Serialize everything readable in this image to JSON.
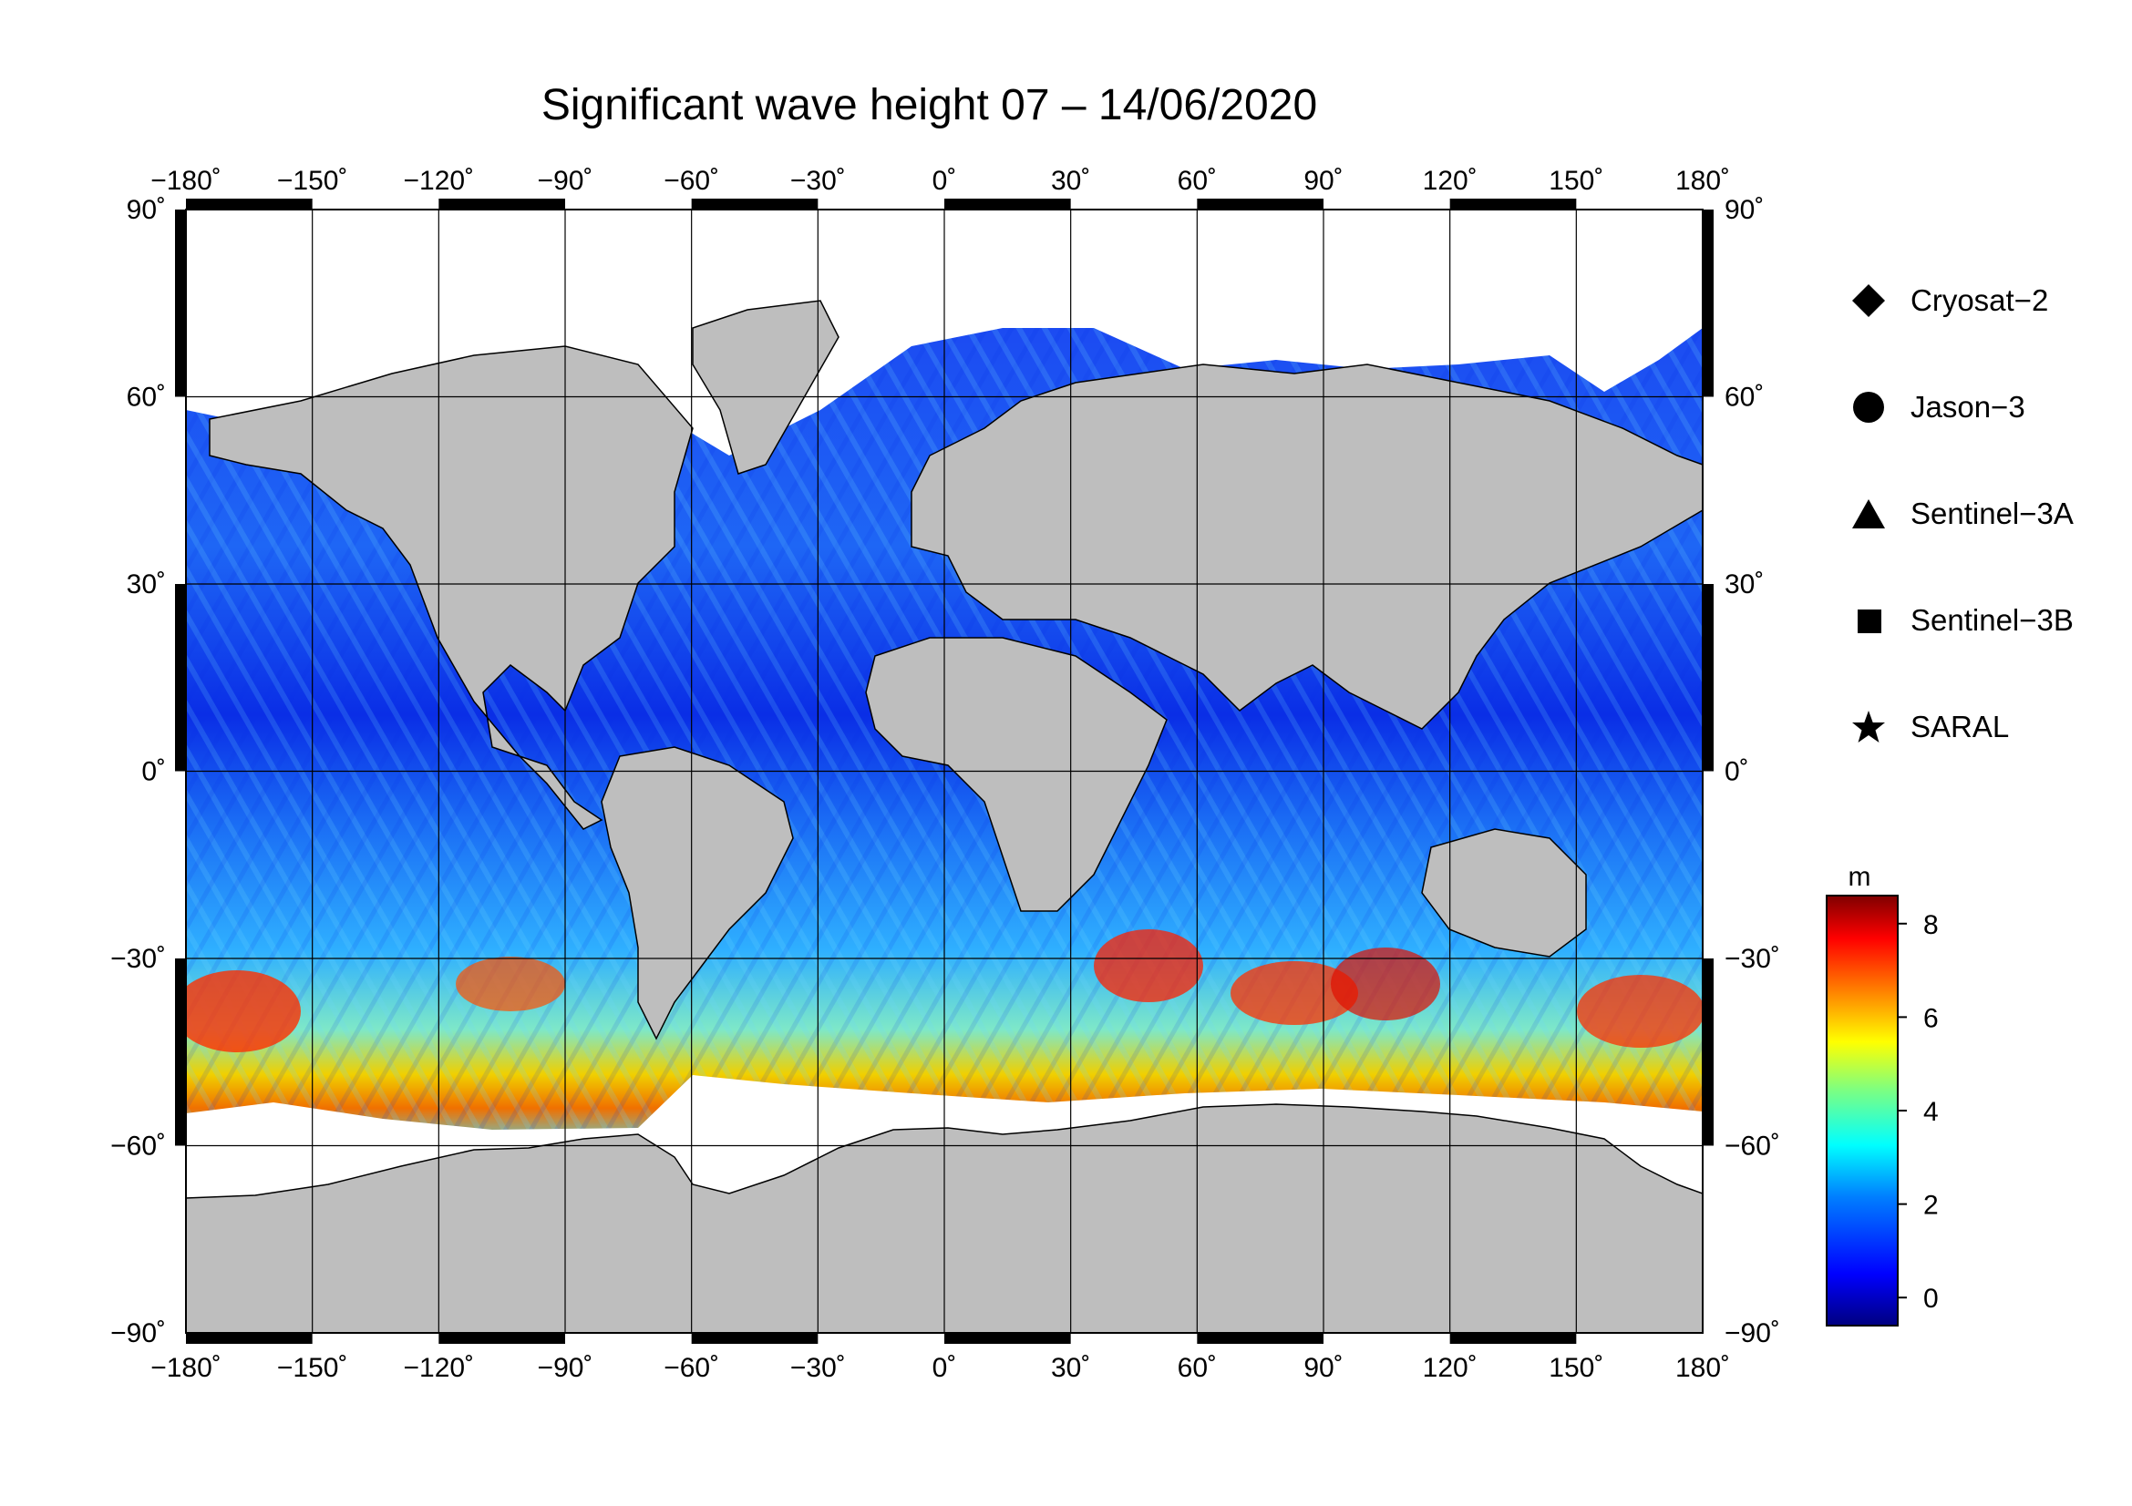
{
  "title": "Significant wave height 07 – 14/06/2020",
  "axes": {
    "lon_ticks": [
      "−180˚",
      "−150˚",
      "−120˚",
      "−90˚",
      "−60˚",
      "−30˚",
      "0˚",
      "30˚",
      "60˚",
      "90˚",
      "120˚",
      "150˚",
      "180˚"
    ],
    "lat_ticks": [
      "90˚",
      "60˚",
      "30˚",
      "0˚",
      "−30˚",
      "−60˚",
      "−90˚"
    ],
    "lon_values": [
      -180,
      -150,
      -120,
      -90,
      -60,
      -30,
      0,
      30,
      60,
      90,
      120,
      150,
      180
    ],
    "lat_values": [
      90,
      60,
      30,
      0,
      -30,
      -60,
      -90
    ]
  },
  "legend": [
    {
      "name": "Cryosat−2",
      "icon": "diamond-icon"
    },
    {
      "name": "Jason−3",
      "icon": "circle-icon"
    },
    {
      "name": "Sentinel−3A",
      "icon": "triangle-icon"
    },
    {
      "name": "Sentinel−3B",
      "icon": "square-icon"
    },
    {
      "name": "SARAL",
      "icon": "star-icon"
    }
  ],
  "colorbar": {
    "unit": "m",
    "ticks": [
      "8",
      "6",
      "4",
      "2",
      "0"
    ],
    "tick_values": [
      8,
      6,
      4,
      2,
      0
    ],
    "range": [
      -0.6,
      8.6
    ],
    "colors": [
      "#00007f",
      "#0000ff",
      "#007fff",
      "#00ffff",
      "#7fff7f",
      "#ffff00",
      "#ff7f00",
      "#ff0000",
      "#7f0000"
    ]
  },
  "colors": {
    "land": "#bebebe",
    "ice": "#ffffff",
    "ocean_low": "#0a2ae0",
    "ocean_mid": "#2f9fff",
    "ocean_high": "#e22a00"
  }
}
